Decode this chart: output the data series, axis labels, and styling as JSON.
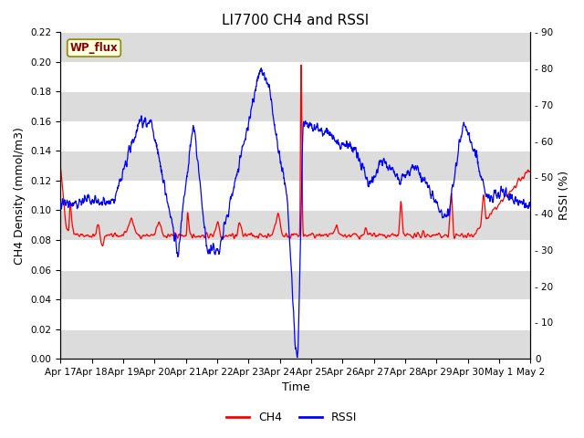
{
  "title": "LI7700 CH4 and RSSI",
  "xlabel": "Time",
  "ylabel_left": "CH4 Density (mmol/m3)",
  "ylabel_right": "RSSI (%)",
  "site_label": "WP_flux",
  "ch4_color": "#FF0000",
  "rssi_color": "#0000FF",
  "ylim_left": [
    0.0,
    0.22
  ],
  "ylim_right": [
    0,
    90
  ],
  "yticks_left": [
    0.0,
    0.02,
    0.04,
    0.06,
    0.08,
    0.1,
    0.12,
    0.14,
    0.16,
    0.18,
    0.2,
    0.22
  ],
  "yticks_right": [
    0,
    10,
    20,
    30,
    40,
    50,
    60,
    70,
    80,
    90
  ],
  "x_tick_labels": [
    "Apr 17",
    "Apr 18",
    "Apr 19",
    "Apr 20",
    "Apr 21",
    "Apr 22",
    "Apr 23",
    "Apr 24",
    "Apr 25",
    "Apr 26",
    "Apr 27",
    "Apr 28",
    "Apr 29",
    "Apr 30",
    "May 1",
    "May 2"
  ],
  "title_fontsize": 11,
  "axis_fontsize": 9,
  "tick_fontsize": 7.5,
  "bg_color": "#FFFFFF",
  "band_color": "#DCDCDC",
  "grid_color": "#C8C8C8"
}
